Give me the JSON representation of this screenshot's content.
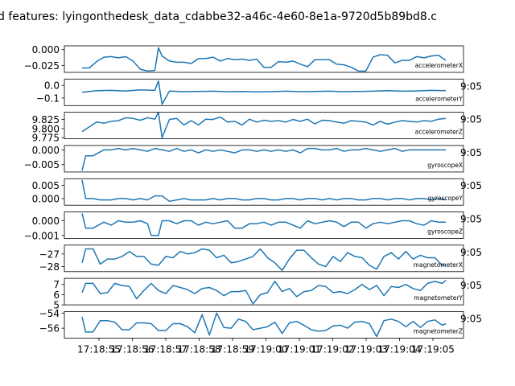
{
  "figure": {
    "title": "d features: lyingonthedesk_data_cdabbe32-a46c-4e60-8e1a-9720d5b89bd8.c",
    "right_clip_label": "9:05",
    "x_tick_labels": [
      "17:18:55",
      "17:18:56",
      "17:18:57",
      "17:18:58",
      "17:18:59",
      "17:19:00",
      "17:19:01",
      "17:19:02",
      "17:19:03",
      "17:19:04",
      "17:19:05"
    ]
  },
  "chart_data": [
    {
      "type": "line",
      "name": "accelerometerX",
      "ylim": [
        -0.036,
        0.006
      ],
      "yticks": [
        0.0,
        -0.025
      ],
      "ytick_labels": [
        "0.000",
        "−0.025"
      ],
      "color": "#1f77b4",
      "x": [
        0,
        2,
        4,
        6,
        8,
        10,
        12,
        14,
        16,
        18,
        20,
        21,
        22,
        24,
        26,
        28,
        30,
        32,
        34,
        36,
        38,
        40,
        42,
        44,
        46,
        48,
        50,
        52,
        54,
        56,
        58,
        60,
        62,
        64,
        66,
        68,
        70,
        72,
        74,
        76,
        78,
        80,
        82,
        84,
        86,
        88,
        90,
        92,
        94,
        96,
        98,
        100
      ],
      "values": [
        -0.029,
        -0.029,
        -0.019,
        -0.012,
        -0.011,
        -0.013,
        -0.011,
        -0.018,
        -0.031,
        -0.034,
        -0.033,
        0.003,
        -0.01,
        -0.018,
        -0.02,
        -0.02,
        -0.022,
        -0.014,
        -0.014,
        -0.012,
        -0.018,
        -0.014,
        -0.016,
        -0.015,
        -0.017,
        -0.015,
        -0.028,
        -0.028,
        -0.019,
        -0.02,
        -0.018,
        -0.023,
        -0.027,
        -0.016,
        -0.016,
        -0.016,
        -0.023,
        -0.024,
        -0.028,
        -0.034,
        -0.034,
        -0.012,
        -0.008,
        -0.009,
        -0.021,
        -0.017,
        -0.017,
        -0.011,
        -0.013,
        -0.01,
        -0.009,
        -0.017
      ]
    },
    {
      "type": "line",
      "name": "accelerometerY",
      "ylim": [
        -0.16,
        0.05
      ],
      "yticks": [
        0.0,
        -0.1
      ],
      "ytick_labels": [
        "0.0",
        "−0.1"
      ],
      "color": "#1f77b4",
      "x": [
        0,
        4,
        8,
        12,
        16,
        20,
        21,
        22,
        24,
        28,
        32,
        36,
        40,
        44,
        48,
        52,
        56,
        60,
        64,
        68,
        72,
        76,
        80,
        84,
        88,
        92,
        96,
        100
      ],
      "values": [
        -0.055,
        -0.042,
        -0.04,
        -0.045,
        -0.035,
        -0.04,
        0.035,
        -0.15,
        -0.045,
        -0.05,
        -0.048,
        -0.046,
        -0.05,
        -0.048,
        -0.052,
        -0.05,
        -0.046,
        -0.05,
        -0.048,
        -0.046,
        -0.05,
        -0.048,
        -0.046,
        -0.042,
        -0.046,
        -0.044,
        -0.04,
        -0.042
      ]
    },
    {
      "type": "line",
      "name": "accelerometerZ",
      "ylim": [
        9.772,
        9.845
      ],
      "yticks": [
        9.825,
        9.8,
        9.775
      ],
      "ytick_labels": [
        "9.825",
        "9.800",
        "9.775"
      ],
      "color": "#1f77b4",
      "x": [
        0,
        2,
        4,
        6,
        8,
        10,
        12,
        14,
        16,
        18,
        20,
        21,
        22,
        24,
        26,
        28,
        30,
        32,
        34,
        36,
        38,
        40,
        42,
        44,
        46,
        48,
        50,
        52,
        54,
        56,
        58,
        60,
        62,
        64,
        66,
        68,
        70,
        72,
        74,
        76,
        78,
        80,
        82,
        84,
        86,
        88,
        90,
        92,
        94,
        96,
        98,
        100
      ],
      "values": [
        9.792,
        9.805,
        9.818,
        9.815,
        9.82,
        9.822,
        9.83,
        9.828,
        9.823,
        9.83,
        9.826,
        9.845,
        9.775,
        9.825,
        9.828,
        9.81,
        9.822,
        9.81,
        9.826,
        9.825,
        9.832,
        9.818,
        9.82,
        9.81,
        9.826,
        9.818,
        9.823,
        9.82,
        9.822,
        9.818,
        9.825,
        9.82,
        9.826,
        9.813,
        9.823,
        9.822,
        9.818,
        9.815,
        9.822,
        9.82,
        9.818,
        9.81,
        9.82,
        9.812,
        9.818,
        9.822,
        9.82,
        9.818,
        9.822,
        9.82,
        9.826,
        9.828
      ]
    },
    {
      "type": "line",
      "name": "gyroscopeX",
      "ylim": [
        -0.0075,
        0.0015
      ],
      "yticks": [
        0.0,
        -0.005
      ],
      "ytick_labels": [
        "0.000",
        "−0.005"
      ],
      "color": "#1f77b4",
      "x": [
        0,
        1,
        3,
        6,
        8,
        10,
        12,
        14,
        16,
        18,
        20,
        22,
        24,
        26,
        28,
        30,
        32,
        34,
        36,
        38,
        40,
        42,
        44,
        46,
        48,
        50,
        52,
        54,
        56,
        58,
        60,
        62,
        64,
        66,
        68,
        70,
        72,
        74,
        76,
        78,
        80,
        82,
        84,
        86,
        88,
        90,
        92,
        94,
        96,
        98,
        100
      ],
      "values": [
        -0.007,
        -0.002,
        -0.002,
        0.0,
        0.0,
        0.0005,
        0.0,
        0.0005,
        0.0,
        -0.0005,
        0.0005,
        0.0,
        -0.0005,
        0.0005,
        -0.0005,
        0.0,
        -0.001,
        0.0,
        -0.0005,
        0.0,
        -0.0005,
        -0.001,
        0.0,
        0.0,
        -0.0005,
        0.0,
        -0.0005,
        0.0,
        -0.0005,
        0.0,
        -0.001,
        0.0005,
        0.0005,
        0.0,
        0.0,
        0.0005,
        -0.0005,
        0.0,
        0.0,
        0.0005,
        0.0,
        -0.0005,
        0.0,
        0.0005,
        -0.0005,
        0.0,
        0.0,
        0.0,
        0.0,
        0.0,
        0.0
      ]
    },
    {
      "type": "line",
      "name": "gyroscopeY",
      "ylim": [
        -0.0025,
        0.0075
      ],
      "yticks": [
        0.005,
        0.0
      ],
      "ytick_labels": [
        "0.005",
        "0.000"
      ],
      "color": "#1f77b4",
      "x": [
        0,
        1,
        3,
        5,
        8,
        10,
        12,
        14,
        16,
        18,
        20,
        22,
        24,
        26,
        28,
        30,
        32,
        34,
        36,
        38,
        40,
        42,
        44,
        46,
        48,
        50,
        52,
        54,
        56,
        58,
        60,
        62,
        64,
        66,
        68,
        70,
        72,
        74,
        76,
        78,
        80,
        82,
        84,
        86,
        88,
        90,
        92,
        94,
        96,
        98,
        100
      ],
      "values": [
        0.007,
        0.0,
        0.0,
        -0.0005,
        -0.0005,
        0.0,
        0.0,
        -0.0005,
        0.0,
        -0.0005,
        0.001,
        0.001,
        -0.001,
        -0.0005,
        0.0,
        -0.0005,
        -0.0005,
        -0.0005,
        0.0,
        -0.0005,
        0.0,
        0.0,
        -0.0005,
        -0.0005,
        0.0,
        0.0,
        -0.0005,
        -0.0005,
        0.0,
        0.0,
        -0.0005,
        0.0,
        0.0,
        -0.0005,
        0.0,
        -0.0005,
        0.0,
        0.0,
        -0.0005,
        -0.0005,
        0.0,
        0.0,
        -0.0005,
        0.0,
        0.0,
        -0.0005,
        0.0,
        0.0,
        -0.0005,
        0.0,
        -0.0005
      ]
    },
    {
      "type": "line",
      "name": "gyroscopeZ",
      "ylim": [
        -0.0012,
        0.0006
      ],
      "yticks": [
        0.0,
        -0.001
      ],
      "ytick_labels": [
        "0.000",
        "−0.001"
      ],
      "color": "#1f77b4",
      "x": [
        0,
        1,
        3,
        6,
        8,
        10,
        12,
        14,
        16,
        18,
        19,
        21,
        22,
        24,
        26,
        28,
        30,
        32,
        34,
        36,
        38,
        40,
        42,
        44,
        46,
        48,
        50,
        52,
        54,
        56,
        58,
        60,
        62,
        64,
        66,
        68,
        70,
        72,
        74,
        76,
        78,
        80,
        82,
        84,
        86,
        88,
        90,
        92,
        94,
        96,
        98,
        100
      ],
      "values": [
        0.0005,
        -0.0005,
        -0.0005,
        -0.0001,
        -0.0003,
        0.0,
        -0.0001,
        -0.0001,
        0.0,
        -0.0002,
        -0.001,
        -0.001,
        0.0,
        0.0,
        -0.0002,
        0.0,
        0.0,
        -0.0003,
        -0.0001,
        -0.0002,
        -0.0001,
        0.0,
        -0.0005,
        -0.0005,
        -0.0002,
        -0.0002,
        -0.0001,
        -0.0003,
        -0.0001,
        -0.0001,
        -0.0003,
        -0.0005,
        0.0,
        -0.0002,
        -0.0001,
        0.0,
        -0.0001,
        -0.0004,
        -0.0001,
        -0.0001,
        -0.0005,
        -0.0002,
        -0.0001,
        -0.0002,
        -0.0001,
        0.0,
        0.0,
        -0.0002,
        -0.0003,
        0.0,
        -0.0001,
        -0.0001
      ]
    },
    {
      "type": "line",
      "name": "magnetometerX",
      "ylim": [
        -28.4,
        -26.3
      ],
      "yticks": [
        -27,
        -28
      ],
      "ytick_labels": [
        "−27",
        "−28"
      ],
      "color": "#1f77b4",
      "x": [
        0,
        1,
        3,
        5,
        7,
        9,
        11,
        13,
        15,
        17,
        19,
        21,
        23,
        25,
        27,
        29,
        31,
        33,
        35,
        37,
        39,
        41,
        43,
        45,
        47,
        49,
        51,
        53,
        55,
        57,
        59,
        61,
        63,
        65,
        67,
        69,
        71,
        73,
        75,
        77,
        79,
        81,
        83,
        85,
        87,
        89,
        91,
        93,
        95,
        97,
        99,
        100
      ],
      "values": [
        -27.7,
        -26.6,
        -26.6,
        -27.8,
        -27.4,
        -27.4,
        -27.2,
        -26.8,
        -27.2,
        -27.2,
        -27.8,
        -27.9,
        -27.2,
        -27.3,
        -26.8,
        -27.0,
        -26.9,
        -26.6,
        -26.7,
        -27.3,
        -27.1,
        -27.7,
        -27.6,
        -27.4,
        -27.2,
        -26.6,
        -27.3,
        -27.7,
        -28.3,
        -27.4,
        -26.7,
        -26.7,
        -27.3,
        -27.8,
        -28.0,
        -27.2,
        -27.6,
        -26.9,
        -27.2,
        -27.3,
        -27.9,
        -28.2,
        -27.2,
        -26.9,
        -27.4,
        -26.8,
        -27.4,
        -27.1,
        -27.3,
        -27.3,
        -27.9,
        -27.9
      ]
    },
    {
      "type": "line",
      "name": "magnetometerY",
      "ylim": [
        5,
        7.6
      ],
      "yticks": [
        7,
        6,
        5
      ],
      "ytick_labels": [
        "7",
        "6",
        "5"
      ],
      "color": "#1f77b4",
      "x": [
        0,
        1,
        3,
        5,
        7,
        9,
        11,
        13,
        15,
        17,
        19,
        21,
        23,
        25,
        27,
        29,
        31,
        33,
        35,
        37,
        39,
        41,
        43,
        45,
        47,
        49,
        51,
        53,
        55,
        57,
        59,
        61,
        63,
        65,
        67,
        69,
        71,
        73,
        75,
        77,
        79,
        81,
        83,
        85,
        87,
        89,
        91,
        93,
        95,
        97,
        99,
        100
      ],
      "values": [
        6.2,
        7.1,
        7.1,
        6.1,
        6.2,
        7.1,
        6.9,
        6.8,
        5.6,
        6.4,
        7.1,
        6.4,
        6.1,
        6.9,
        6.7,
        6.5,
        6.1,
        6.6,
        6.7,
        6.4,
        5.9,
        6.3,
        6.3,
        6.4,
        5.1,
        6.0,
        6.2,
        7.3,
        6.3,
        6.6,
        5.8,
        6.3,
        6.4,
        6.9,
        6.8,
        6.2,
        6.3,
        6.1,
        6.5,
        7.0,
        6.5,
        6.9,
        5.9,
        6.8,
        6.7,
        7.0,
        6.6,
        6.4,
        7.1,
        7.3,
        7.1,
        7.4
      ]
    },
    {
      "type": "line",
      "name": "magnetometerZ",
      "ylim": [
        -57.3,
        -53.8
      ],
      "yticks": [
        -54,
        -56
      ],
      "ytick_labels": [
        "−54",
        "−56"
      ],
      "color": "#1f77b4",
      "x": [
        0,
        1,
        3,
        5,
        7,
        9,
        11,
        13,
        15,
        17,
        19,
        21,
        23,
        25,
        27,
        29,
        31,
        33,
        35,
        37,
        39,
        41,
        43,
        45,
        47,
        49,
        51,
        53,
        55,
        57,
        59,
        61,
        63,
        65,
        67,
        69,
        71,
        73,
        75,
        77,
        79,
        81,
        83,
        85,
        87,
        89,
        91,
        93,
        95,
        97,
        99,
        100
      ],
      "values": [
        -54.5,
        -56.5,
        -56.5,
        -55.0,
        -55.0,
        -55.2,
        -56.2,
        -56.2,
        -55.3,
        -55.3,
        -55.4,
        -56.3,
        -56.3,
        -55.4,
        -55.4,
        -55.8,
        -56.6,
        -54.2,
        -56.9,
        -54.0,
        -55.9,
        -56.0,
        -54.8,
        -55.1,
        -56.2,
        -56.0,
        -55.8,
        -55.2,
        -56.7,
        -55.3,
        -55.1,
        -55.6,
        -56.2,
        -56.4,
        -56.3,
        -55.7,
        -55.6,
        -56.0,
        -55.2,
        -55.1,
        -55.4,
        -57.1,
        -55.0,
        -54.8,
        -55.1,
        -55.8,
        -55.1,
        -55.9,
        -55.1,
        -54.9,
        -55.6,
        -55.4
      ]
    }
  ]
}
